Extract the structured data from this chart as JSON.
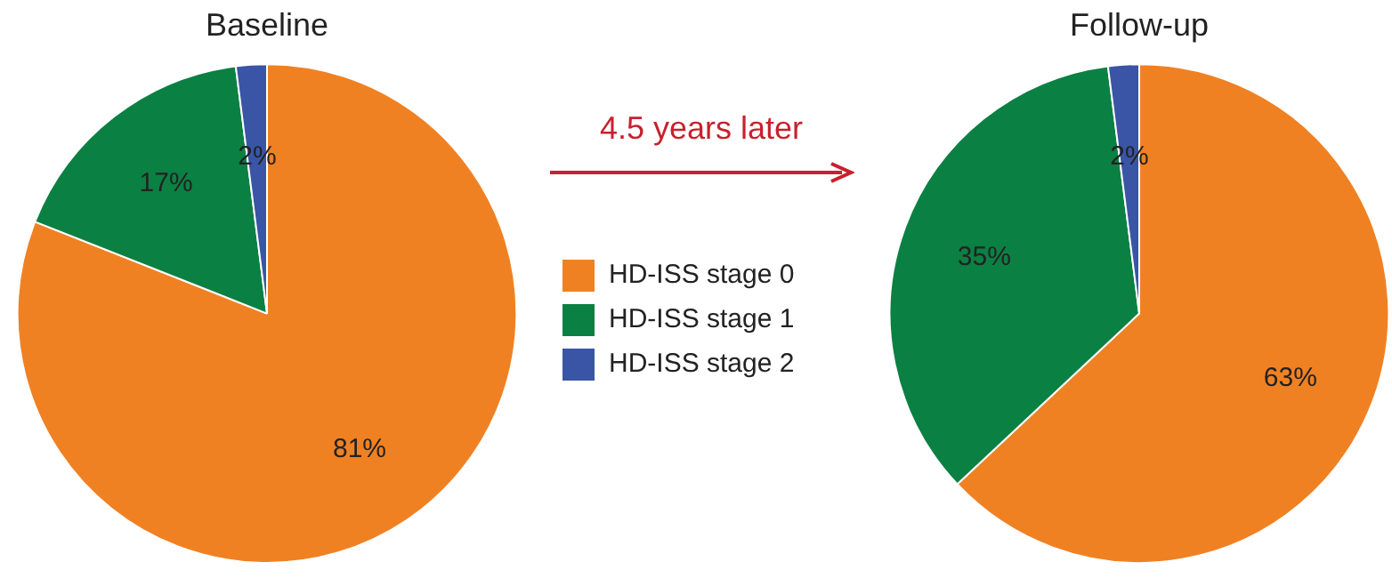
{
  "chart_data": [
    {
      "type": "pie",
      "title": "Baseline",
      "categories": [
        "HD-ISS stage 0",
        "HD-ISS stage 1",
        "HD-ISS stage 2"
      ],
      "values": [
        81,
        17,
        2
      ],
      "value_labels": [
        "81%",
        "17%",
        "2%"
      ],
      "colors": [
        "#f08123",
        "#0b8043",
        "#3a55a5"
      ],
      "legend": "right",
      "annotations": [
        "4.5 years later"
      ]
    },
    {
      "type": "pie",
      "title": "Follow-up",
      "categories": [
        null,
        null,
        null
      ],
      "values": [
        63,
        35,
        2
      ],
      "value_labels": [
        "63%",
        "35%",
        "2%"
      ],
      "colors": [
        "#f08123",
        "#0b8043",
        "#3a55a5"
      ]
    }
  ]
}
